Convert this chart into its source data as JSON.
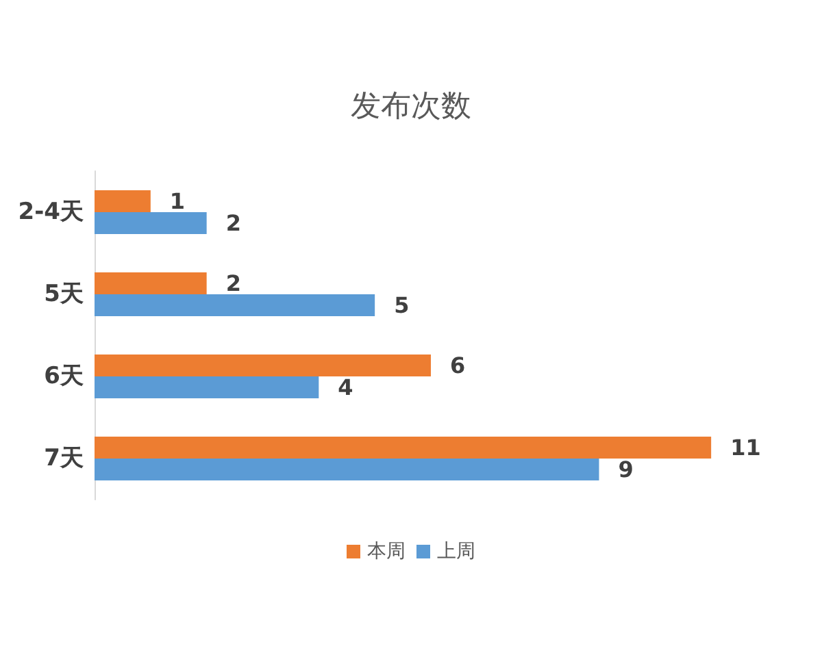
{
  "chart_data": {
    "type": "bar",
    "orientation": "horizontal",
    "title": "发布次数",
    "categories": [
      "2-4天",
      "5天",
      "6天",
      "7天"
    ],
    "series": [
      {
        "name": "本周",
        "color": "#ed7d31",
        "values": [
          1,
          2,
          6,
          11
        ]
      },
      {
        "name": "上周",
        "color": "#5b9bd5",
        "values": [
          2,
          5,
          4,
          9
        ]
      }
    ],
    "data_labels": true,
    "legend": "bottom"
  }
}
